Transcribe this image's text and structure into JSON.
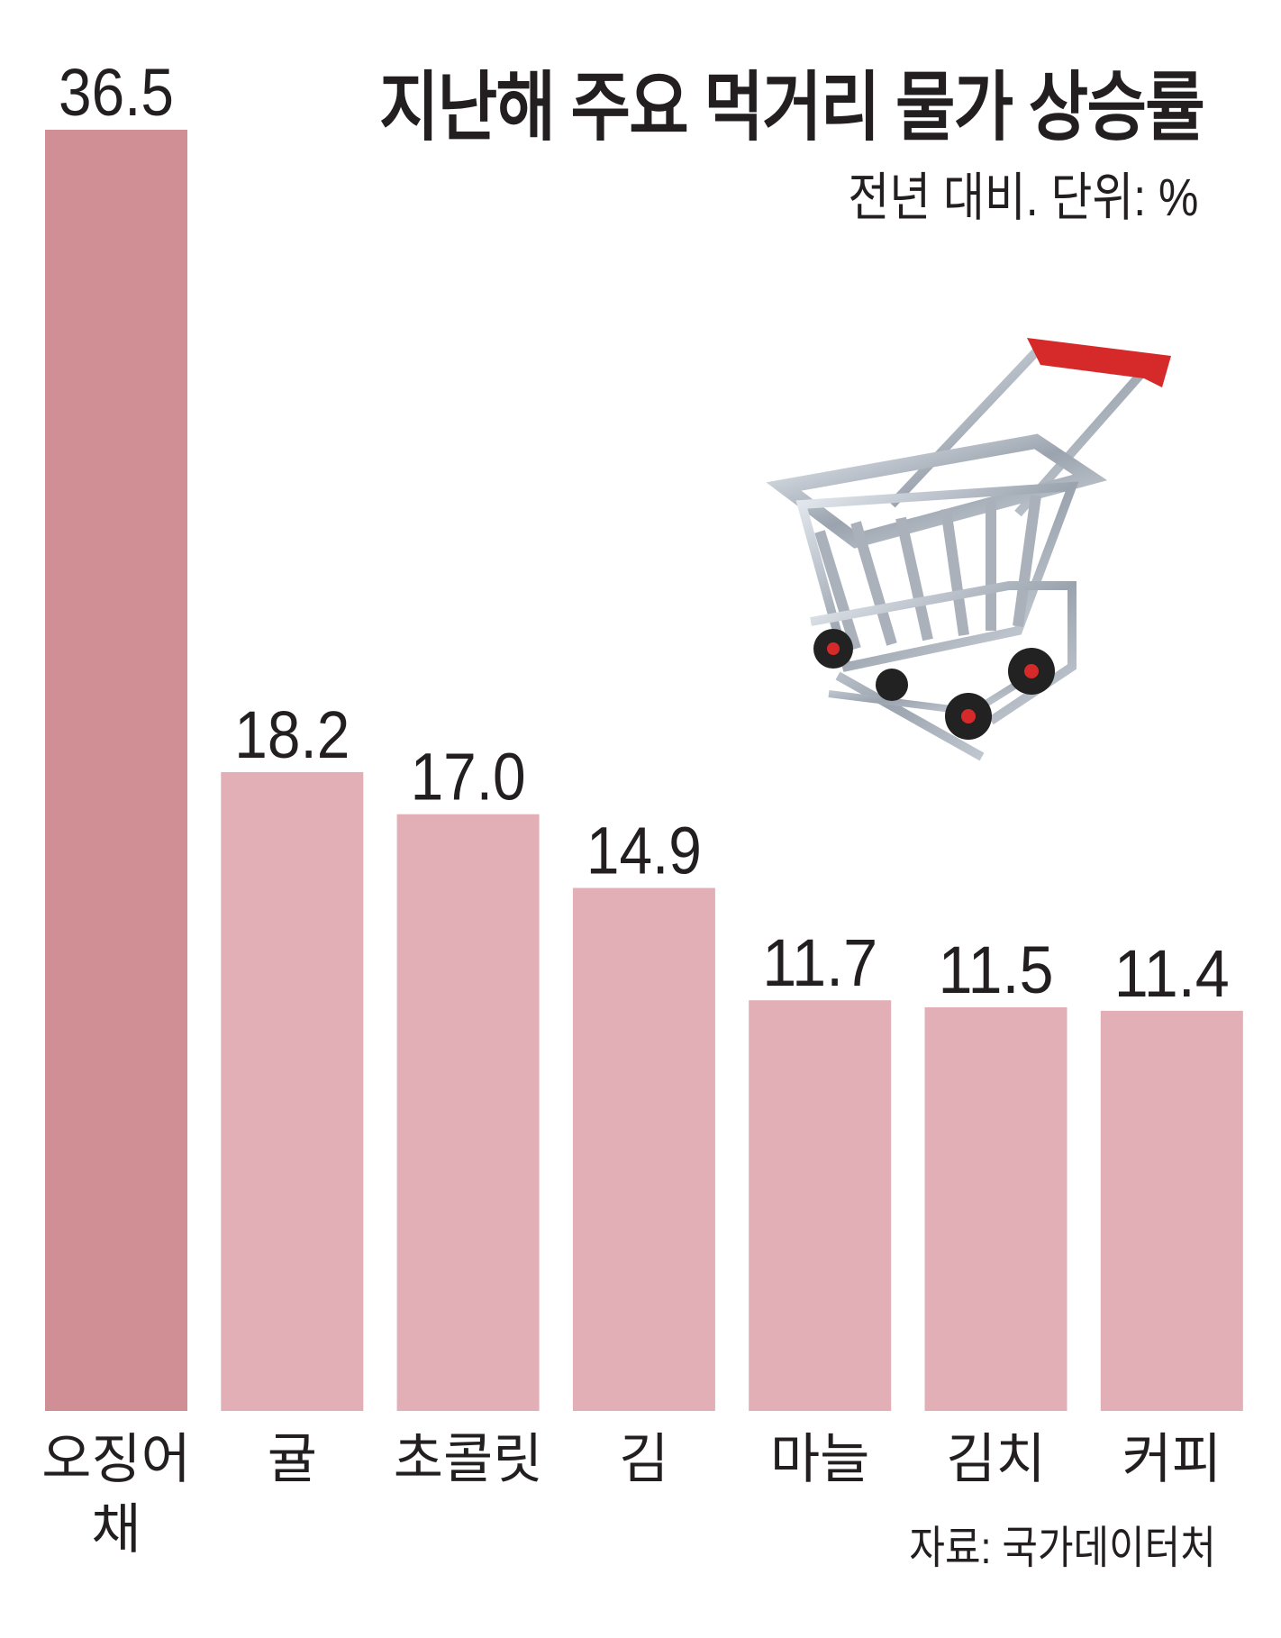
{
  "chart_data": {
    "type": "bar",
    "title": "지난해 주요 먹거리 물가 상승률",
    "subtitle": "전년 대비.  단위: %",
    "categories": [
      "오징어\n채",
      "귤",
      "초콜릿",
      "김",
      "마늘",
      "김치",
      "커피"
    ],
    "values": [
      36.5,
      18.2,
      17.0,
      14.9,
      11.7,
      11.5,
      11.4
    ],
    "value_labels": [
      "36.5",
      "18.2",
      "17.0",
      "14.9",
      "11.7",
      "11.5",
      "11.4"
    ],
    "ylim": [
      0,
      36.5
    ],
    "grid": false,
    "colors": {
      "highlight": "#cf8f94",
      "default": "#e2afb7"
    },
    "source": "자료: 국가데이터처"
  },
  "illustration": "shopping-cart-icon"
}
